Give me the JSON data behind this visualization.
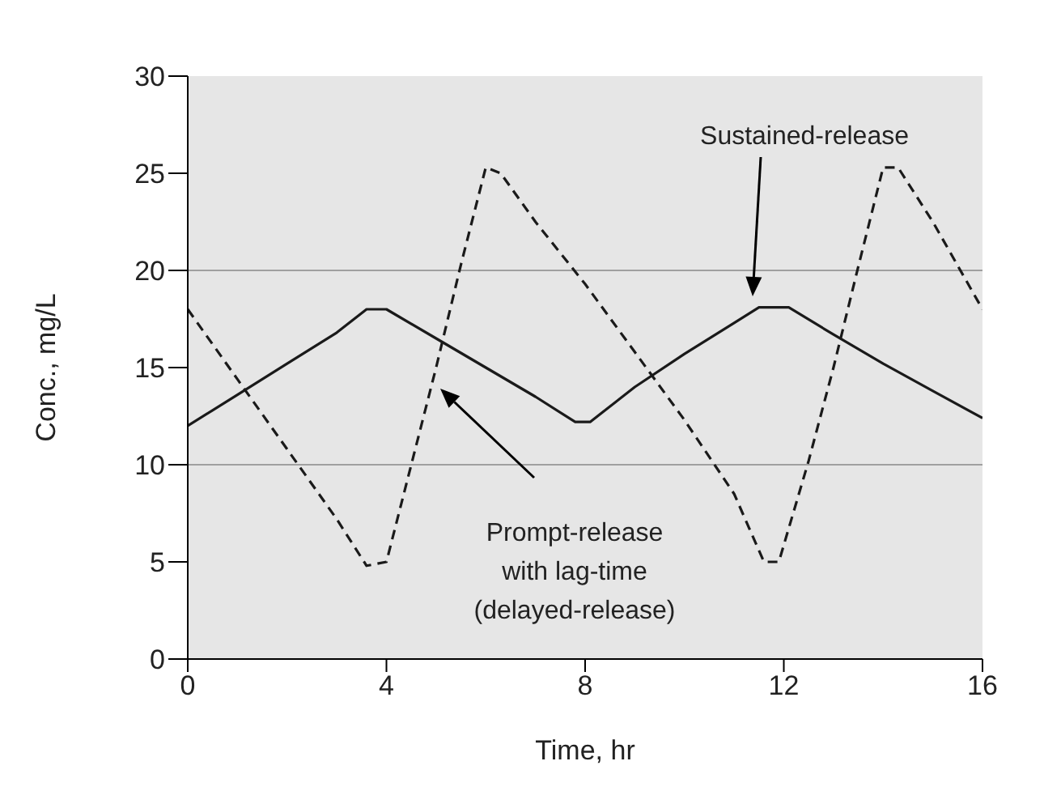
{
  "chart_data": {
    "type": "line",
    "xlabel": "Time, hr",
    "ylabel": "Conc., mg/L",
    "xlim": [
      0,
      16
    ],
    "xticks": [
      0,
      4,
      8,
      12,
      16
    ],
    "ylim": [
      0,
      30
    ],
    "yticks": [
      0,
      5,
      10,
      15,
      20,
      25,
      30
    ],
    "marker": "none",
    "ref_lines": [
      {
        "axis": "y",
        "value": 10,
        "color": "#a0a0a0"
      },
      {
        "axis": "y",
        "value": 20,
        "color": "#a0a0a0"
      }
    ],
    "series": [
      {
        "color": "#1a1a1a",
        "line_style": "solid",
        "x": [
          0,
          1,
          2,
          3,
          3.6,
          4,
          5,
          6,
          7,
          7.8,
          8.1,
          9,
          10,
          11,
          11.5,
          12.1,
          13,
          14,
          15,
          16
        ],
        "values": [
          12,
          13.6,
          15.2,
          16.8,
          18,
          18,
          16.5,
          15,
          13.5,
          12.2,
          12.2,
          14,
          15.7,
          17.3,
          18.1,
          18.1,
          16.7,
          15.2,
          13.8,
          12.4
        ]
      },
      {
        "color": "#1a1a1a",
        "line_style": "dashed",
        "x": [
          0,
          1,
          2,
          3,
          3.6,
          4,
          4.5,
          5,
          5.5,
          6,
          6.3,
          7,
          8,
          9,
          10,
          11,
          11.6,
          11.9,
          12.5,
          13,
          13.5,
          14,
          14.3,
          15,
          16
        ],
        "values": [
          18,
          14.4,
          10.8,
          7.2,
          4.8,
          5,
          10,
          15,
          20.3,
          25.3,
          25,
          22.5,
          19.3,
          15.8,
          12.3,
          8.5,
          5,
          5,
          10.2,
          15,
          20.2,
          25.3,
          25.3,
          22.5,
          18
        ]
      }
    ],
    "annotations": [
      "Sustained-release",
      "Prompt-release\nwith lag-time\n(delayed-release)"
    ]
  }
}
